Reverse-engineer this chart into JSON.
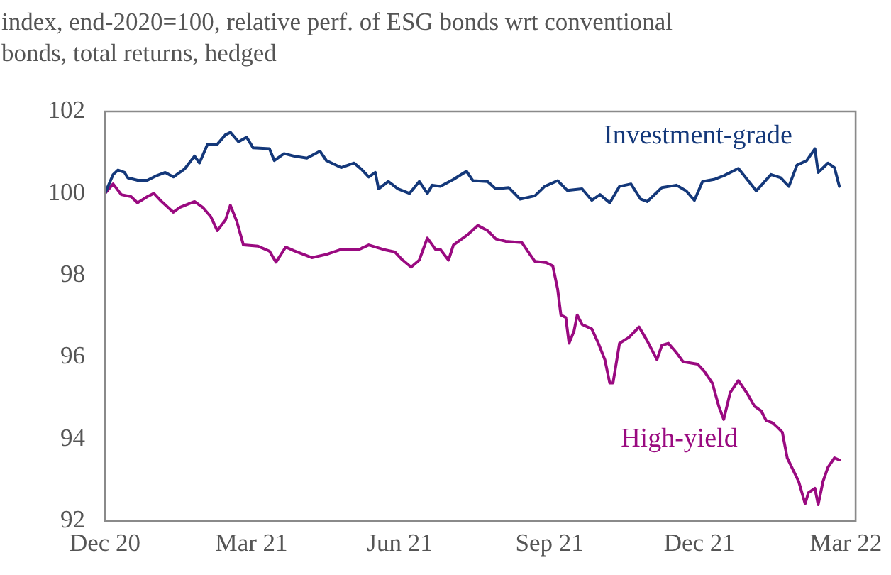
{
  "chart_data": {
    "type": "line",
    "title": "index, end-2020=100, relative perf. of ESG bonds wrt conventional bonds, total returns, hedged",
    "xlim": [
      "2020-12-31",
      "2022-04-06"
    ],
    "xticks": [
      {
        "value": "2020-12-31",
        "label": "Dec 20"
      },
      {
        "value": "2021-03-31",
        "label": "Mar 21"
      },
      {
        "value": "2021-06-30",
        "label": "Jun 21"
      },
      {
        "value": "2021-09-30",
        "label": "Sep 21"
      },
      {
        "value": "2021-12-31",
        "label": "Dec 21"
      },
      {
        "value": "2022-03-31",
        "label": "Mar 22"
      }
    ],
    "ylim": [
      92,
      102
    ],
    "yticks": [
      92,
      94,
      96,
      98,
      100,
      102
    ],
    "grid": false,
    "legend": false,
    "marker": "none",
    "line_style": "solid",
    "series": [
      {
        "name": "Investment-grade",
        "color": "#14387a",
        "x": [
          "2020-12-31",
          "2021-01-05",
          "2021-01-08",
          "2021-01-12",
          "2021-01-14",
          "2021-01-20",
          "2021-01-26",
          "2021-01-31",
          "2021-02-06",
          "2021-02-11",
          "2021-02-18",
          "2021-02-24",
          "2021-02-27",
          "2021-03-04",
          "2021-03-10",
          "2021-03-15",
          "2021-03-18",
          "2021-03-23",
          "2021-03-28",
          "2021-04-01",
          "2021-04-11",
          "2021-04-14",
          "2021-04-20",
          "2021-04-26",
          "2021-05-04",
          "2021-05-12",
          "2021-05-16",
          "2021-05-25",
          "2021-06-02",
          "2021-06-07",
          "2021-06-11",
          "2021-06-15",
          "2021-06-17",
          "2021-06-23",
          "2021-06-29",
          "2021-07-06",
          "2021-07-12",
          "2021-07-17",
          "2021-07-20",
          "2021-07-25",
          "2021-08-02",
          "2021-08-10",
          "2021-08-14",
          "2021-08-23",
          "2021-08-28",
          "2021-09-05",
          "2021-09-12",
          "2021-09-21",
          "2021-09-27",
          "2021-10-05",
          "2021-10-11",
          "2021-10-20",
          "2021-10-26",
          "2021-10-31",
          "2021-11-06",
          "2021-11-12",
          "2021-11-19",
          "2021-11-25",
          "2021-11-29",
          "2021-12-08",
          "2021-12-17",
          "2021-12-23",
          "2021-12-28",
          "2022-01-02",
          "2022-01-09",
          "2022-01-15",
          "2022-01-24",
          "2022-02-04",
          "2022-02-13",
          "2022-02-19",
          "2022-02-24",
          "2022-03-01",
          "2022-03-07",
          "2022-03-12",
          "2022-03-14",
          "2022-03-20",
          "2022-03-24",
          "2022-03-27"
        ],
        "values": [
          100.0,
          100.46,
          100.57,
          100.51,
          100.38,
          100.32,
          100.32,
          100.42,
          100.51,
          100.4,
          100.6,
          100.91,
          100.74,
          101.2,
          101.2,
          101.43,
          101.49,
          101.26,
          101.37,
          101.11,
          101.09,
          100.8,
          100.97,
          100.91,
          100.86,
          101.03,
          100.8,
          100.63,
          100.74,
          100.57,
          100.4,
          100.51,
          100.11,
          100.29,
          100.11,
          100.0,
          100.29,
          100.0,
          100.2,
          100.17,
          100.34,
          100.54,
          100.31,
          100.29,
          100.11,
          100.14,
          99.86,
          99.94,
          100.17,
          100.31,
          100.07,
          100.11,
          99.83,
          99.97,
          99.77,
          100.17,
          100.23,
          99.86,
          99.8,
          100.14,
          100.2,
          100.06,
          99.83,
          100.29,
          100.34,
          100.43,
          100.61,
          100.06,
          100.46,
          100.38,
          100.17,
          100.69,
          100.8,
          101.09,
          100.51,
          100.74,
          100.63,
          100.17
        ]
      },
      {
        "name": "High-yield",
        "color": "#9a0a80",
        "x": [
          "2020-12-31",
          "2021-01-05",
          "2021-01-10",
          "2021-01-16",
          "2021-01-20",
          "2021-01-26",
          "2021-01-30",
          "2021-02-03",
          "2021-02-11",
          "2021-02-15",
          "2021-02-24",
          "2021-03-01",
          "2021-03-06",
          "2021-03-10",
          "2021-03-15",
          "2021-03-18",
          "2021-03-22",
          "2021-03-26",
          "2021-04-04",
          "2021-04-11",
          "2021-04-15",
          "2021-04-21",
          "2021-04-26",
          "2021-05-07",
          "2021-05-16",
          "2021-05-25",
          "2021-06-05",
          "2021-06-11",
          "2021-06-20",
          "2021-06-27",
          "2021-07-01",
          "2021-07-07",
          "2021-07-12",
          "2021-07-17",
          "2021-07-22",
          "2021-07-25",
          "2021-07-30",
          "2021-08-02",
          "2021-08-11",
          "2021-08-17",
          "2021-08-23",
          "2021-08-28",
          "2021-09-03",
          "2021-09-13",
          "2021-09-18",
          "2021-09-21",
          "2021-09-28",
          "2021-10-02",
          "2021-10-05",
          "2021-10-07",
          "2021-10-10",
          "2021-10-12",
          "2021-10-15",
          "2021-10-17",
          "2021-10-20",
          "2021-10-26",
          "2021-10-30",
          "2021-11-03",
          "2021-11-06",
          "2021-11-08",
          "2021-11-12",
          "2021-11-18",
          "2021-11-24",
          "2021-11-29",
          "2021-12-05",
          "2021-12-08",
          "2021-12-12",
          "2021-12-17",
          "2021-12-21",
          "2021-12-30",
          "2022-01-03",
          "2022-01-08",
          "2022-01-12",
          "2022-01-15",
          "2022-01-19",
          "2022-01-24",
          "2022-01-29",
          "2022-02-03",
          "2022-02-07",
          "2022-02-10",
          "2022-02-14",
          "2022-02-17",
          "2022-02-20",
          "2022-02-23",
          "2022-03-02",
          "2022-03-06",
          "2022-03-08",
          "2022-03-12",
          "2022-03-14",
          "2022-03-17",
          "2022-03-20",
          "2022-03-24",
          "2022-03-27"
        ],
        "values": [
          100.0,
          100.23,
          99.97,
          99.92,
          99.77,
          99.92,
          100.0,
          99.83,
          99.54,
          99.66,
          99.8,
          99.66,
          99.43,
          99.09,
          99.35,
          99.71,
          99.31,
          98.74,
          98.71,
          98.59,
          98.32,
          98.69,
          98.6,
          98.43,
          98.51,
          98.63,
          98.63,
          98.74,
          98.63,
          98.57,
          98.4,
          98.2,
          98.37,
          98.91,
          98.63,
          98.63,
          98.37,
          98.74,
          99.0,
          99.22,
          99.09,
          98.89,
          98.83,
          98.8,
          98.51,
          98.34,
          98.31,
          98.23,
          97.66,
          97.03,
          96.97,
          96.34,
          96.63,
          97.03,
          96.8,
          96.69,
          96.34,
          95.94,
          95.37,
          95.37,
          96.34,
          96.49,
          96.74,
          96.4,
          95.94,
          96.29,
          96.34,
          96.11,
          95.89,
          95.83,
          95.66,
          95.37,
          94.8,
          94.48,
          95.14,
          95.43,
          95.14,
          94.8,
          94.69,
          94.46,
          94.4,
          94.29,
          94.17,
          93.54,
          92.97,
          92.42,
          92.69,
          92.8,
          92.4,
          92.97,
          93.31,
          93.54,
          93.49
        ]
      }
    ]
  }
}
